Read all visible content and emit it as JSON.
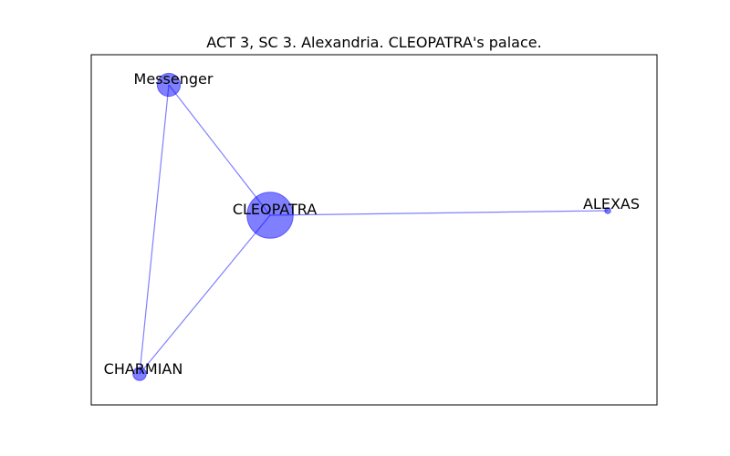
{
  "figure": {
    "title": "ACT 3, SC 3. Alexandria. CLEOPATRA's palace."
  },
  "colors": {
    "node_fill": "#0000ff",
    "node_opacity": 0.5,
    "edge_color": "#0000ff",
    "edge_opacity": 0.5,
    "frame": "#000000",
    "background": "#ffffff"
  },
  "graph": {
    "nodes": [
      {
        "id": "Messenger",
        "label": "Messenger",
        "weight": 3
      },
      {
        "id": "CLEOPATRA",
        "label": "CLEOPATRA",
        "weight": 12
      },
      {
        "id": "ALEXAS",
        "label": "ALEXAS",
        "weight": 0.2
      },
      {
        "id": "CHARMIAN",
        "label": "CHARMIAN",
        "weight": 1
      }
    ],
    "edges": [
      {
        "source": "Messenger",
        "target": "CLEOPATRA"
      },
      {
        "source": "Messenger",
        "target": "CHARMIAN"
      },
      {
        "source": "CLEOPATRA",
        "target": "ALEXAS"
      },
      {
        "source": "CLEOPATRA",
        "target": "CHARMIAN"
      }
    ]
  }
}
